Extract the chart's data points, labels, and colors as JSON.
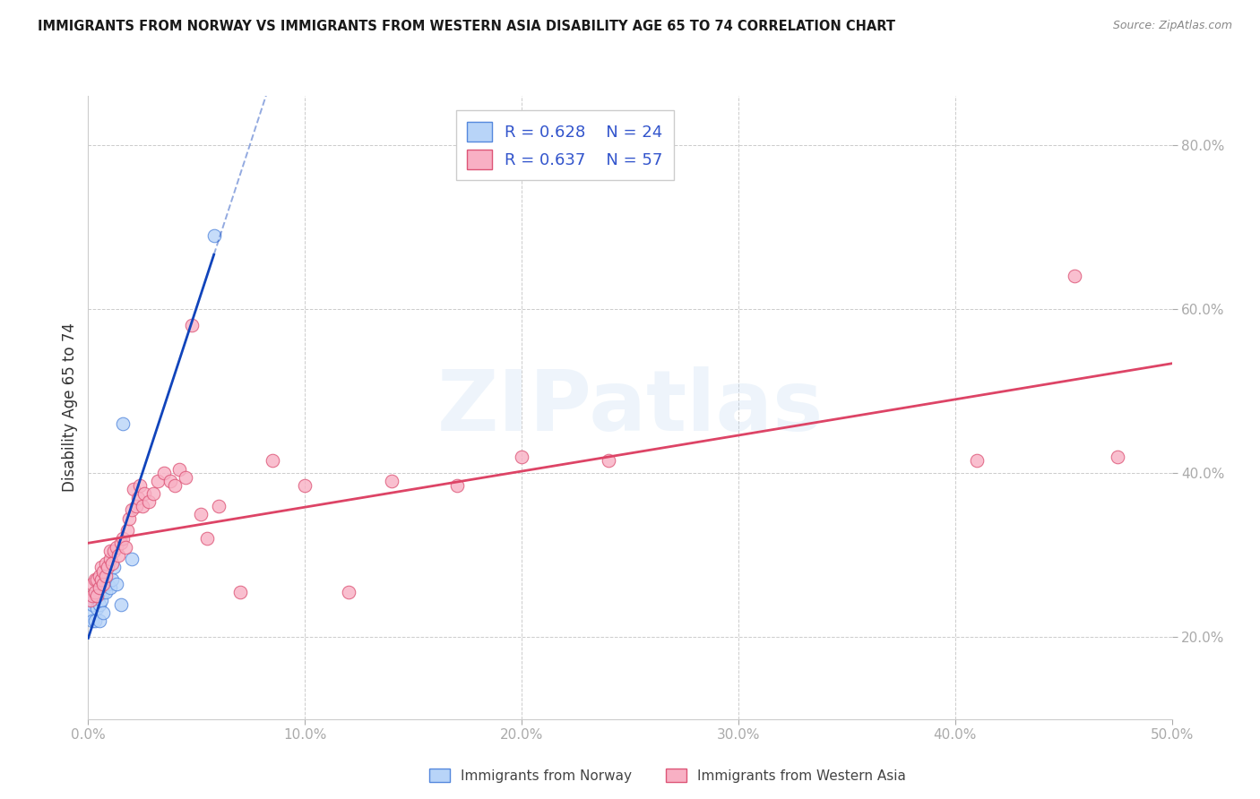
{
  "title": "IMMIGRANTS FROM NORWAY VS IMMIGRANTS FROM WESTERN ASIA DISABILITY AGE 65 TO 74 CORRELATION CHART",
  "source": "Source: ZipAtlas.com",
  "ylabel": "Disability Age 65 to 74",
  "xlim": [
    0.0,
    0.5
  ],
  "ylim": [
    0.1,
    0.86
  ],
  "xticks": [
    0.0,
    0.1,
    0.2,
    0.3,
    0.4,
    0.5
  ],
  "xticklabels": [
    "0.0%",
    "10.0%",
    "20.0%",
    "30.0%",
    "40.0%",
    "50.0%"
  ],
  "yticks_right": [
    0.2,
    0.4,
    0.6,
    0.8
  ],
  "yticklabels_right": [
    "20.0%",
    "40.0%",
    "60.0%",
    "80.0%"
  ],
  "norway_fill": "#b8d4f8",
  "norway_edge": "#5588dd",
  "wa_fill": "#f8b0c4",
  "wa_edge": "#dd5577",
  "trend_norway": "#1144bb",
  "trend_wa": "#dd4466",
  "norway_R": "0.628",
  "norway_N": "24",
  "wa_R": "0.637",
  "wa_N": "57",
  "label_norway": "Immigrants from Norway",
  "label_wa": "Immigrants from Western Asia",
  "watermark": "ZIPatlas",
  "norway_x": [
    0.001,
    0.002,
    0.002,
    0.003,
    0.003,
    0.004,
    0.004,
    0.005,
    0.005,
    0.005,
    0.006,
    0.006,
    0.007,
    0.007,
    0.008,
    0.009,
    0.01,
    0.011,
    0.012,
    0.013,
    0.015,
    0.016,
    0.02,
    0.058
  ],
  "norway_y": [
    0.23,
    0.22,
    0.24,
    0.22,
    0.25,
    0.235,
    0.255,
    0.22,
    0.24,
    0.255,
    0.245,
    0.26,
    0.23,
    0.255,
    0.255,
    0.265,
    0.26,
    0.27,
    0.285,
    0.265,
    0.24,
    0.46,
    0.295,
    0.69
  ],
  "wa_x": [
    0.001,
    0.002,
    0.002,
    0.003,
    0.003,
    0.004,
    0.004,
    0.005,
    0.005,
    0.006,
    0.006,
    0.007,
    0.007,
    0.008,
    0.008,
    0.009,
    0.01,
    0.01,
    0.011,
    0.012,
    0.013,
    0.014,
    0.015,
    0.016,
    0.017,
    0.018,
    0.019,
    0.02,
    0.021,
    0.022,
    0.023,
    0.024,
    0.025,
    0.026,
    0.028,
    0.03,
    0.032,
    0.035,
    0.038,
    0.04,
    0.042,
    0.045,
    0.048,
    0.052,
    0.055,
    0.06,
    0.07,
    0.085,
    0.1,
    0.12,
    0.14,
    0.17,
    0.2,
    0.24,
    0.41,
    0.455,
    0.475
  ],
  "wa_y": [
    0.245,
    0.25,
    0.265,
    0.255,
    0.27,
    0.25,
    0.27,
    0.26,
    0.275,
    0.27,
    0.285,
    0.265,
    0.28,
    0.275,
    0.29,
    0.285,
    0.295,
    0.305,
    0.29,
    0.305,
    0.31,
    0.3,
    0.315,
    0.32,
    0.31,
    0.33,
    0.345,
    0.355,
    0.38,
    0.36,
    0.37,
    0.385,
    0.36,
    0.375,
    0.365,
    0.375,
    0.39,
    0.4,
    0.39,
    0.385,
    0.405,
    0.395,
    0.58,
    0.35,
    0.32,
    0.36,
    0.255,
    0.415,
    0.385,
    0.255,
    0.39,
    0.385,
    0.42,
    0.415,
    0.415,
    0.64,
    0.42
  ],
  "norway_trend_x_end": 0.058,
  "norway_trend_dash_end": 0.35,
  "wa_trend_x_start": 0.0,
  "wa_trend_x_end": 0.5
}
